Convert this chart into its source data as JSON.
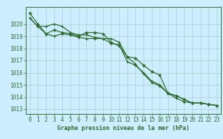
{
  "title": "Graphe pression niveau de la mer (hPa)",
  "background_color": "#cceeff",
  "grid_color": "#aacccc",
  "line_color": "#2d6a2d",
  "xlim_min": -0.5,
  "xlim_max": 23.5,
  "ylim_min": 1012.6,
  "ylim_max": 1021.4,
  "yticks": [
    1013,
    1014,
    1015,
    1016,
    1017,
    1018,
    1019,
    1020
  ],
  "xticks": [
    0,
    1,
    2,
    3,
    4,
    5,
    6,
    7,
    8,
    9,
    10,
    11,
    12,
    13,
    14,
    15,
    16,
    17,
    18,
    19,
    20,
    21,
    22,
    23
  ],
  "line1_x": [
    0,
    1,
    2,
    3,
    4,
    5,
    6,
    7,
    8,
    9,
    10,
    11,
    12,
    13,
    14,
    15,
    16,
    17,
    18,
    19,
    20,
    21,
    22,
    23
  ],
  "line1_y": [
    1020.5,
    1019.8,
    1019.8,
    1020.0,
    1019.8,
    1019.3,
    1019.1,
    1019.1,
    1018.9,
    1018.8,
    1018.4,
    1018.3,
    1016.9,
    1016.6,
    1016.0,
    1015.3,
    1015.0,
    1014.3,
    1014.1,
    1013.8,
    1013.5,
    1013.5,
    1013.4,
    1013.3
  ],
  "line2_x": [
    0,
    1,
    2,
    3,
    4,
    5,
    6,
    7,
    8,
    9,
    10,
    11,
    12,
    13,
    14,
    15,
    16,
    17,
    18,
    19,
    20,
    21,
    22,
    23
  ],
  "line2_y": [
    1020.5,
    1019.8,
    1019.2,
    1019.0,
    1019.2,
    1019.1,
    1018.9,
    1018.8,
    1018.8,
    1018.8,
    1018.8,
    1018.5,
    1017.3,
    1016.7,
    1015.9,
    1015.2,
    1014.9,
    1014.3,
    1013.9,
    1013.6,
    1013.5,
    1013.5,
    1013.4,
    1013.3
  ],
  "line3_x": [
    0,
    1,
    2,
    3,
    4,
    5,
    6,
    7,
    8,
    9,
    10,
    11,
    12,
    13,
    14,
    15,
    16,
    17,
    18,
    19,
    20,
    21,
    22,
    23
  ],
  "line3_y": [
    1020.9,
    1020.0,
    1019.2,
    1019.5,
    1019.3,
    1019.2,
    1019.0,
    1019.3,
    1019.3,
    1019.2,
    1018.5,
    1018.2,
    1017.3,
    1017.2,
    1016.6,
    1016.1,
    1015.8,
    1014.3,
    1014.1,
    1013.8,
    1013.5,
    1013.5,
    1013.4,
    1013.3
  ],
  "tick_fontsize": 5.5,
  "label_fontsize": 6.0,
  "linewidth": 0.9,
  "markersize": 3.0
}
